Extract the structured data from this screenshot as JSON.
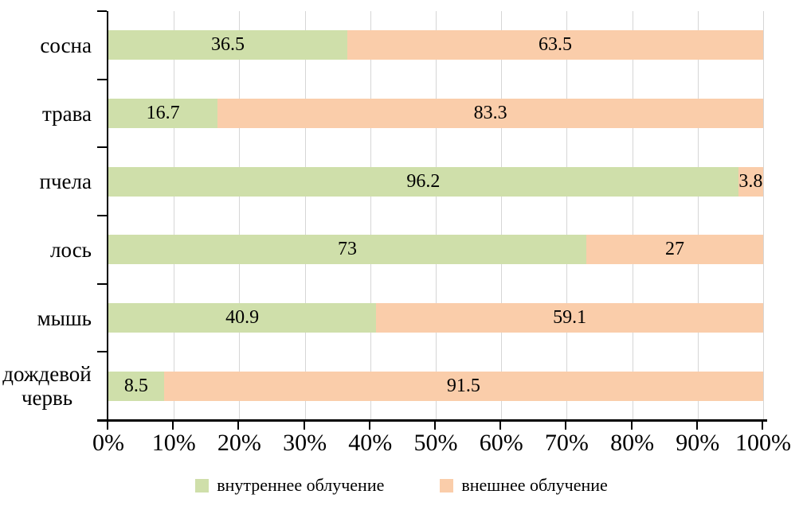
{
  "chart_data": {
    "type": "bar",
    "orientation": "horizontal",
    "stacked": true,
    "unit": "%",
    "categories": [
      "сосна",
      "трава",
      "пчела",
      "лось",
      "мышь",
      "дождевой червь"
    ],
    "series": [
      {
        "name": "внутреннее облучение",
        "color": "#cfdfaa",
        "values": [
          36.5,
          16.7,
          96.2,
          73,
          40.9,
          8.5
        ]
      },
      {
        "name": "внешнее облучение",
        "color": "#facdaa",
        "values": [
          63.5,
          83.3,
          3.8,
          27,
          59.1,
          91.5
        ]
      }
    ],
    "value_labels": {
      "внутреннее облучение": [
        "36.5",
        "16.7",
        "96.2",
        "73",
        "40.9",
        "8.5"
      ],
      "внешнее облучение": [
        "63.5",
        "83.3",
        "3.8",
        "27",
        "59.1",
        "91.5"
      ]
    },
    "xlim": [
      0,
      100
    ],
    "x_tick_labels": [
      "0%",
      "10%",
      "20%",
      "30%",
      "40%",
      "50%",
      "60%",
      "70%",
      "80%",
      "90%",
      "100%"
    ],
    "grid": "vertical",
    "legend_position": "bottom",
    "colors": {
      "gridline": "#d6d6d6",
      "axis": "#000000",
      "text": "#000000",
      "background": "#ffffff"
    }
  }
}
